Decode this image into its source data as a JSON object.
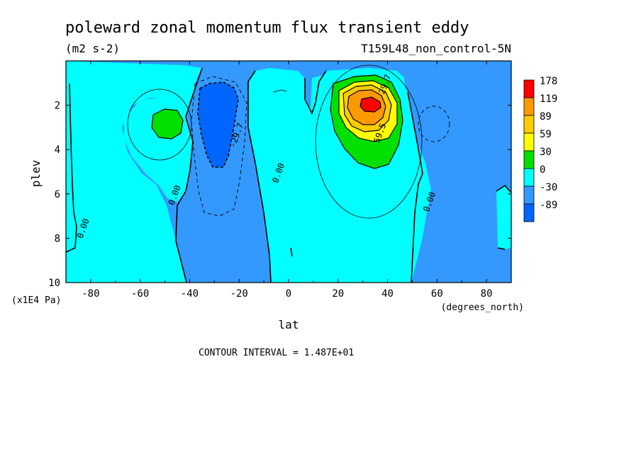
{
  "header": {
    "title": "poleward zonal momentum flux transient eddy",
    "units": "(m2 s-2)",
    "dataset": "T159L48_non_control-5N"
  },
  "footer": {
    "contour_interval": "CONTOUR INTERVAL = 1.487E+01"
  },
  "chart_data": {
    "type": "heatmap",
    "subtype": "filled contour",
    "title": "poleward zonal momentum flux transient eddy",
    "xlabel": "lat",
    "x_unit_label": "(degrees_north)",
    "ylabel": "plev",
    "y_unit_label": "(x1E4 Pa)",
    "xlim": [
      -90,
      90
    ],
    "ylim": [
      10,
      0
    ],
    "y_inverted": true,
    "x_ticks": [
      -80,
      -60,
      -40,
      -20,
      0,
      20,
      40,
      60,
      80
    ],
    "y_ticks": [
      2,
      4,
      6,
      8,
      10
    ],
    "colorbar": {
      "levels": [
        "178",
        "119",
        "89",
        "59",
        "30",
        "0",
        "-30",
        "-89"
      ],
      "colors": [
        "#ff0000",
        "#ff9900",
        "#ffcc00",
        "#ffff00",
        "#00e000",
        "#00ffff",
        "#3399ff",
        "#0066ff"
      ]
    },
    "contour_labels": [
      {
        "text": "0.00",
        "lat": -45,
        "plev": 6.1
      },
      {
        "text": "0.00",
        "lat": -82,
        "plev": 7.6
      },
      {
        "text": "0.00",
        "lat": -3,
        "plev": 5.1
      },
      {
        "text": "0.00",
        "lat": 58,
        "plev": 6.4
      },
      {
        "text": "-29.7",
        "lat": -20,
        "plev": 3.4
      },
      {
        "text": "29.7",
        "lat": 40,
        "plev": 1.1
      },
      {
        "text": "59.5",
        "lat": 38,
        "plev": 3.3
      }
    ],
    "features": [
      {
        "kind": "max",
        "lat": 33,
        "plev": 2.1,
        "level": "178"
      },
      {
        "kind": "positive",
        "lat": -49,
        "plev": 2.9,
        "level": "30"
      },
      {
        "kind": "negative",
        "lat": -28,
        "plev": 3.0,
        "level": "-89"
      }
    ]
  }
}
